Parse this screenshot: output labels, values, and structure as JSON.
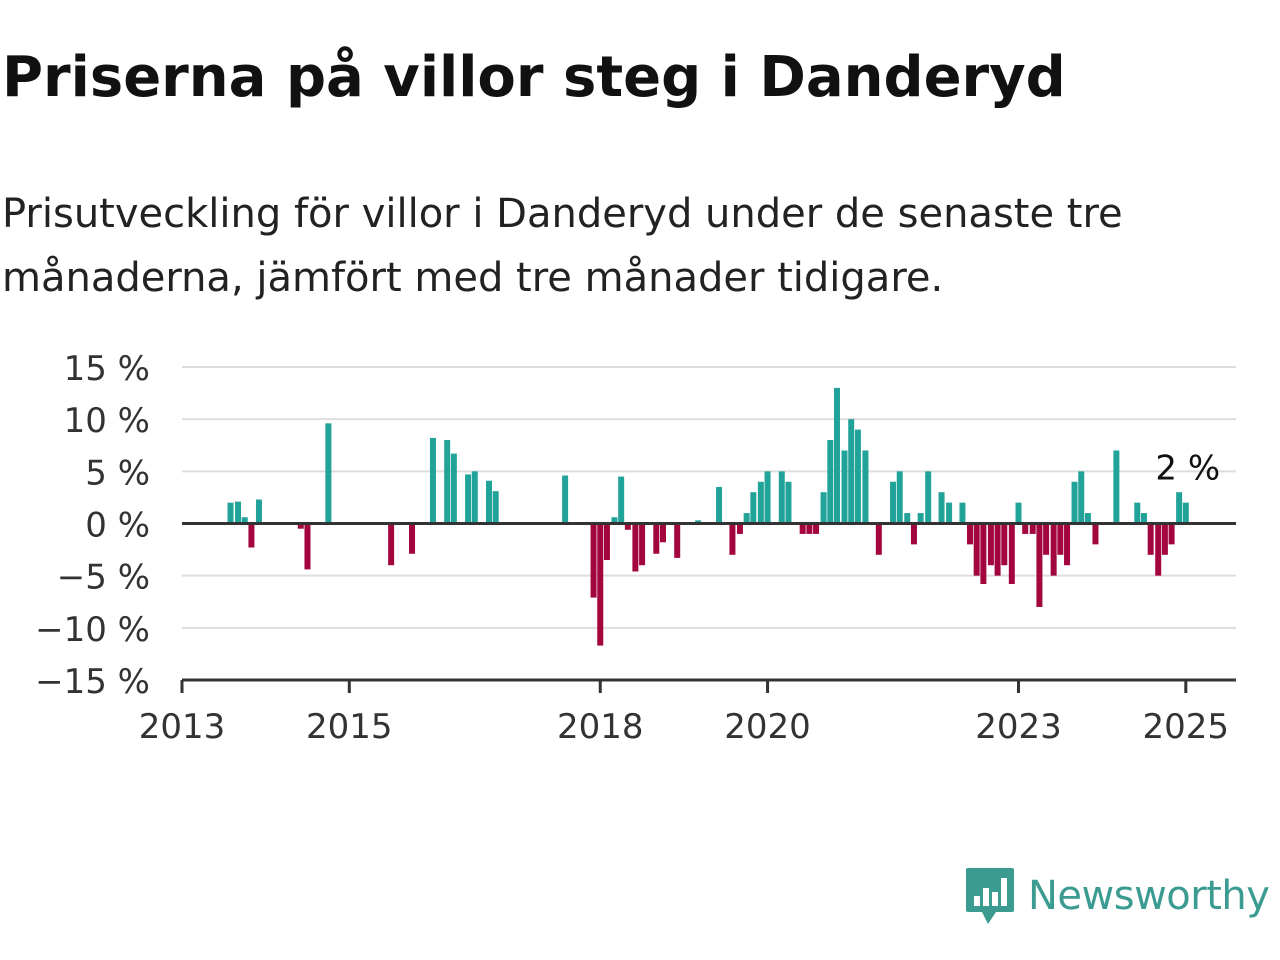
{
  "title": "Priserna på villor steg i Danderyd",
  "subtitle": "Prisutveckling för villor i Danderyd under de senaste tre månaderna, jämfört med tre månader tidigare.",
  "brand": {
    "name": "Newsworthy",
    "logo_icon": "newsworthy-bar-chart-icon"
  },
  "colors": {
    "positive": "#22a39a",
    "negative": "#a3063f",
    "zero_line": "#333333",
    "grid": "#dddddd",
    "brand": "#3b9b91"
  },
  "chart_data": {
    "type": "bar",
    "title": "Priserna på villor steg i Danderyd",
    "xlabel": "",
    "ylabel": "",
    "ylim": [
      -15,
      15
    ],
    "xlim": [
      2013,
      2025.6
    ],
    "y_ticks": [
      15,
      10,
      5,
      0,
      -5,
      -10,
      -15
    ],
    "y_tick_labels": [
      "15 %",
      "10 %",
      "5 %",
      "0 %",
      "−5 %",
      "−10 %",
      "−15 %"
    ],
    "x_ticks": [
      2013,
      2015,
      2018,
      2020,
      2023,
      2025
    ],
    "x_tick_labels": [
      "2013",
      "2015",
      "2018",
      "2020",
      "2023",
      "2025"
    ],
    "grid": true,
    "annotation": {
      "text": "2 %",
      "x": 2025.0,
      "y": 2
    },
    "points": [
      {
        "x": 2013.58,
        "y": 2.0
      },
      {
        "x": 2013.67,
        "y": 2.1
      },
      {
        "x": 2013.75,
        "y": 0.6
      },
      {
        "x": 2013.83,
        "y": -2.3
      },
      {
        "x": 2013.92,
        "y": 2.3
      },
      {
        "x": 2014.42,
        "y": -0.5
      },
      {
        "x": 2014.5,
        "y": -4.4
      },
      {
        "x": 2014.75,
        "y": 9.6
      },
      {
        "x": 2015.5,
        "y": -4.0
      },
      {
        "x": 2015.75,
        "y": -2.9
      },
      {
        "x": 2016.0,
        "y": 8.2
      },
      {
        "x": 2016.17,
        "y": 8.0
      },
      {
        "x": 2016.25,
        "y": 6.7
      },
      {
        "x": 2016.42,
        "y": 4.7
      },
      {
        "x": 2016.5,
        "y": 5.0
      },
      {
        "x": 2016.67,
        "y": 4.1
      },
      {
        "x": 2016.75,
        "y": 3.1
      },
      {
        "x": 2017.58,
        "y": 4.6
      },
      {
        "x": 2017.92,
        "y": -7.1
      },
      {
        "x": 2018.0,
        "y": -11.7
      },
      {
        "x": 2018.08,
        "y": -3.5
      },
      {
        "x": 2018.17,
        "y": 0.6
      },
      {
        "x": 2018.25,
        "y": 4.5
      },
      {
        "x": 2018.33,
        "y": -0.6
      },
      {
        "x": 2018.42,
        "y": -4.6
      },
      {
        "x": 2018.5,
        "y": -4.0
      },
      {
        "x": 2018.67,
        "y": -2.9
      },
      {
        "x": 2018.75,
        "y": -1.8
      },
      {
        "x": 2018.92,
        "y": -3.3
      },
      {
        "x": 2019.17,
        "y": 0.3
      },
      {
        "x": 2019.42,
        "y": 3.5
      },
      {
        "x": 2019.58,
        "y": -3.0
      },
      {
        "x": 2019.67,
        "y": -1.0
      },
      {
        "x": 2019.75,
        "y": 1.0
      },
      {
        "x": 2019.83,
        "y": 3.0
      },
      {
        "x": 2019.92,
        "y": 4.0
      },
      {
        "x": 2020.0,
        "y": 5.0
      },
      {
        "x": 2020.17,
        "y": 5.0
      },
      {
        "x": 2020.25,
        "y": 4.0
      },
      {
        "x": 2020.42,
        "y": -1.0
      },
      {
        "x": 2020.5,
        "y": -1.0
      },
      {
        "x": 2020.58,
        "y": -1.0
      },
      {
        "x": 2020.67,
        "y": 3.0
      },
      {
        "x": 2020.75,
        "y": 8.0
      },
      {
        "x": 2020.83,
        "y": 13.0
      },
      {
        "x": 2020.92,
        "y": 7.0
      },
      {
        "x": 2021.0,
        "y": 10.0
      },
      {
        "x": 2021.08,
        "y": 9.0
      },
      {
        "x": 2021.17,
        "y": 7.0
      },
      {
        "x": 2021.33,
        "y": -3.0
      },
      {
        "x": 2021.5,
        "y": 4.0
      },
      {
        "x": 2021.58,
        "y": 5.0
      },
      {
        "x": 2021.67,
        "y": 1.0
      },
      {
        "x": 2021.75,
        "y": -2.0
      },
      {
        "x": 2021.83,
        "y": 1.0
      },
      {
        "x": 2021.92,
        "y": 5.0
      },
      {
        "x": 2022.08,
        "y": 3.0
      },
      {
        "x": 2022.17,
        "y": 2.0
      },
      {
        "x": 2022.33,
        "y": 2.0
      },
      {
        "x": 2022.42,
        "y": -2.0
      },
      {
        "x": 2022.5,
        "y": -5.0
      },
      {
        "x": 2022.58,
        "y": -5.8
      },
      {
        "x": 2022.67,
        "y": -4.0
      },
      {
        "x": 2022.75,
        "y": -5.0
      },
      {
        "x": 2022.83,
        "y": -4.0
      },
      {
        "x": 2022.92,
        "y": -5.8
      },
      {
        "x": 2023.0,
        "y": 2.0
      },
      {
        "x": 2023.08,
        "y": -1.0
      },
      {
        "x": 2023.17,
        "y": -1.0
      },
      {
        "x": 2023.25,
        "y": -8.0
      },
      {
        "x": 2023.33,
        "y": -3.0
      },
      {
        "x": 2023.42,
        "y": -5.0
      },
      {
        "x": 2023.5,
        "y": -3.0
      },
      {
        "x": 2023.58,
        "y": -4.0
      },
      {
        "x": 2023.67,
        "y": 4.0
      },
      {
        "x": 2023.75,
        "y": 5.0
      },
      {
        "x": 2023.83,
        "y": 1.0
      },
      {
        "x": 2023.92,
        "y": -2.0
      },
      {
        "x": 2024.17,
        "y": 7.0
      },
      {
        "x": 2024.42,
        "y": 2.0
      },
      {
        "x": 2024.5,
        "y": 1.0
      },
      {
        "x": 2024.58,
        "y": -3.0
      },
      {
        "x": 2024.67,
        "y": -5.0
      },
      {
        "x": 2024.75,
        "y": -3.0
      },
      {
        "x": 2024.83,
        "y": -2.0
      },
      {
        "x": 2024.92,
        "y": 3.0
      },
      {
        "x": 2025.0,
        "y": 2.0
      }
    ]
  }
}
